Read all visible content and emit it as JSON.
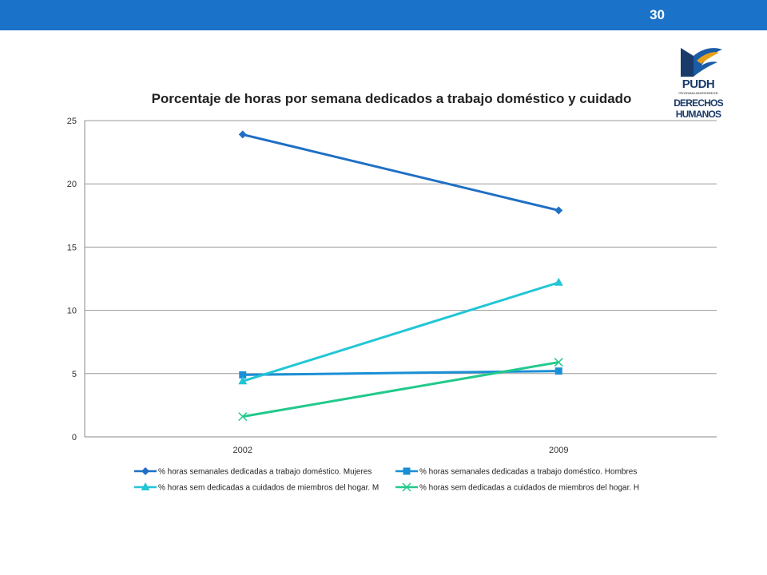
{
  "page": {
    "number": "30"
  },
  "logo": {
    "line1": "PUDH",
    "line2": "PROGRAMA UNIVERSITARIO DE",
    "line3": "DERECHOS",
    "line4": "HUMANOS"
  },
  "chart_data": {
    "type": "line",
    "title": "Porcentaje de horas por semana dedicados a trabajo doméstico y cuidado",
    "xlabel": "",
    "ylabel": "",
    "categories": [
      "2002",
      "2009"
    ],
    "ylim": [
      0,
      25
    ],
    "yticks": [
      "0",
      "5",
      "10",
      "15",
      "20",
      "25"
    ],
    "grid": true,
    "legend_position": "bottom",
    "series": [
      {
        "name": "% horas semanales dedicadas a trabajo doméstico. Mujeres",
        "values": [
          23.9,
          17.9
        ],
        "color": "#1f6fc5",
        "marker": "diamond"
      },
      {
        "name": "% horas semanales dedicadas a trabajo doméstico. Hombres",
        "values": [
          4.9,
          5.2
        ],
        "color": "#1a8fd6",
        "marker": "square"
      },
      {
        "name": "% horas sem dedicadas a cuidados de miembros del hogar. M",
        "values": [
          4.4,
          12.2
        ],
        "color": "#22c6d6",
        "marker": "triangle"
      },
      {
        "name": "% horas sem dedicadas a cuidados de miembros del hogar. H",
        "values": [
          1.6,
          5.9
        ],
        "color": "#22c98c",
        "marker": "x"
      }
    ]
  }
}
